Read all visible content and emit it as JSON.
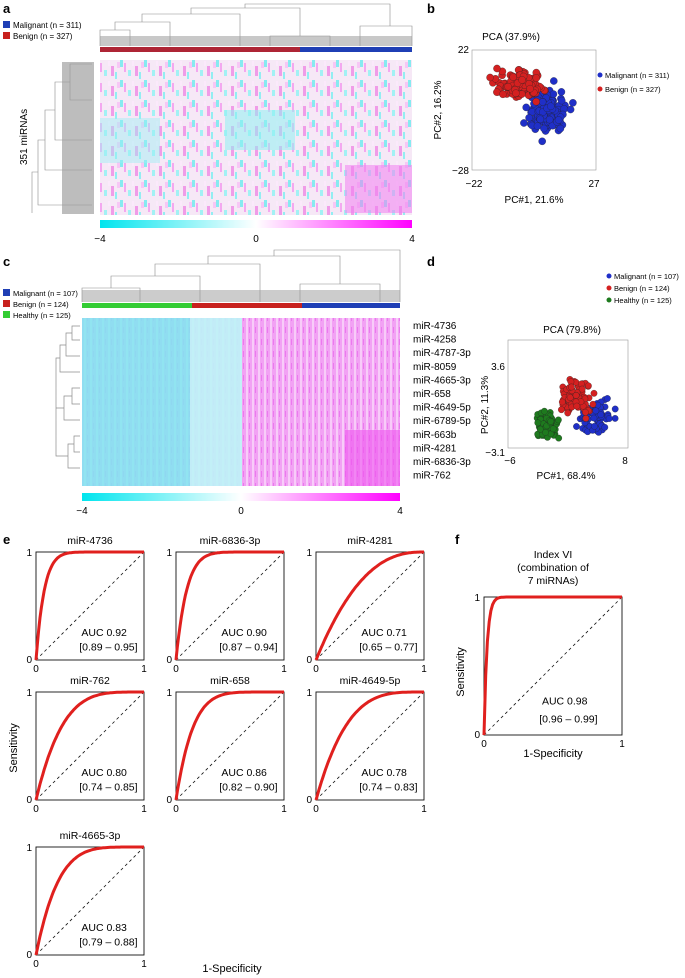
{
  "panels": {
    "a": {
      "letter": "a",
      "legend": [
        {
          "label": "Malignant (n = 311)",
          "color": "#1f3fb5"
        },
        {
          "label": "Benign (n = 327)",
          "color": "#c8211e"
        }
      ],
      "row_label": "351 miRNAs",
      "colorbar_ticks": [
        "−4",
        "0",
        "4"
      ]
    },
    "b": {
      "letter": "b",
      "chart_data": {
        "type": "scatter",
        "title": "PCA (37.9%)",
        "xlabel": "PC#1, 21.6%",
        "ylabel": "PC#2, 16.2%",
        "xlim": [
          -22,
          27
        ],
        "ylim": [
          -28,
          22
        ],
        "xticks": [
          "−22",
          "27"
        ],
        "yticks": [
          "22",
          "−28"
        ],
        "series": [
          {
            "name": "Malignant (n = 311)",
            "color": "#1f2fc8",
            "center": [
              8,
              -4
            ],
            "spread": [
              7,
              8
            ],
            "count": 150
          },
          {
            "name": "Benign (n = 327)",
            "color": "#d42020",
            "center": [
              -3,
              7
            ],
            "spread": [
              8,
              5
            ],
            "count": 170
          }
        ]
      }
    },
    "c": {
      "letter": "c",
      "legend": [
        {
          "label": "Malignant (n = 107)",
          "color": "#1f3fb5"
        },
        {
          "label": "Benign (n = 124)",
          "color": "#c8211e"
        },
        {
          "label": "Healthy (n = 125)",
          "color": "#33cc33"
        }
      ],
      "mirnas": [
        "miR-4736",
        "miR-4258",
        "miR-4787-3p",
        "miR-8059",
        "miR-4665-3p",
        "miR-658",
        "miR-4649-5p",
        "miR-6789-5p",
        "miR-663b",
        "miR-4281",
        "miR-6836-3p",
        "miR-762"
      ],
      "colorbar_ticks": [
        "−4",
        "0",
        "4"
      ]
    },
    "d": {
      "letter": "d",
      "chart_data": {
        "type": "scatter",
        "title": "PCA (79.8%)",
        "xlabel": "PC#1, 68.4%",
        "ylabel": "PC#2, 11.3%",
        "xlim": [
          -6,
          8
        ],
        "ylim": [
          -3.1,
          3.6
        ],
        "xticks": [
          "−6",
          "8"
        ],
        "yticks": [
          "3.6",
          "−3.1"
        ],
        "series": [
          {
            "name": "Malignant (n = 107)",
            "color": "#1f2fc8",
            "center": [
              4.5,
              -0.3
            ],
            "spread": [
              1.8,
              1.2
            ],
            "count": 90
          },
          {
            "name": "Benign (n = 124)",
            "color": "#d42020",
            "center": [
              2,
              1
            ],
            "spread": [
              1.7,
              1.1
            ],
            "count": 110
          },
          {
            "name": "Healthy (n = 125)",
            "color": "#1e7a1e",
            "center": [
              -1.5,
              -1
            ],
            "spread": [
              1.1,
              0.9
            ],
            "count": 100
          }
        ]
      }
    },
    "e": {
      "letter": "e",
      "ylabel": "Sensitivity",
      "xlabel": "1-Specificity",
      "tick0": "0",
      "tick1": "1",
      "chart_data": [
        {
          "type": "line",
          "title": "miR-4736",
          "auc": "AUC 0.92",
          "ci": "[0.89 – 0.95]",
          "k": 13
        },
        {
          "type": "line",
          "title": "miR-6836-3p",
          "auc": "AUC 0.90",
          "ci": "[0.87 – 0.94]",
          "k": 10
        },
        {
          "type": "line",
          "title": "miR-4281",
          "auc": "AUC 0.71",
          "ci": "[0.65 – 0.77]",
          "k": 2.45
        },
        {
          "type": "line",
          "title": "miR-762",
          "auc": "AUC 0.80",
          "ci": "[0.74 – 0.85]",
          "k": 4.2
        },
        {
          "type": "line",
          "title": "miR-658",
          "auc": "AUC 0.86",
          "ci": "[0.82 – 0.90]",
          "k": 6.5
        },
        {
          "type": "line",
          "title": "miR-4649-5p",
          "auc": "AUC 0.78",
          "ci": "[0.74 – 0.83]",
          "k": 3.6
        },
        {
          "type": "line",
          "title": "miR-4665-3p",
          "auc": "AUC 0.83",
          "ci": "[0.79 – 0.88]",
          "k": 5
        }
      ]
    },
    "f": {
      "letter": "f",
      "title_lines": [
        "Index VI",
        "(combination of",
        "7 miRNAs)"
      ],
      "ylabel": "Sensitivity",
      "xlabel": "1-Specificity",
      "tick0": "0",
      "tick1": "1",
      "chart_data": {
        "type": "line",
        "title": "Index VI",
        "auc": "AUC 0.98",
        "ci": "[0.96 – 0.99]",
        "k": 45
      }
    }
  }
}
